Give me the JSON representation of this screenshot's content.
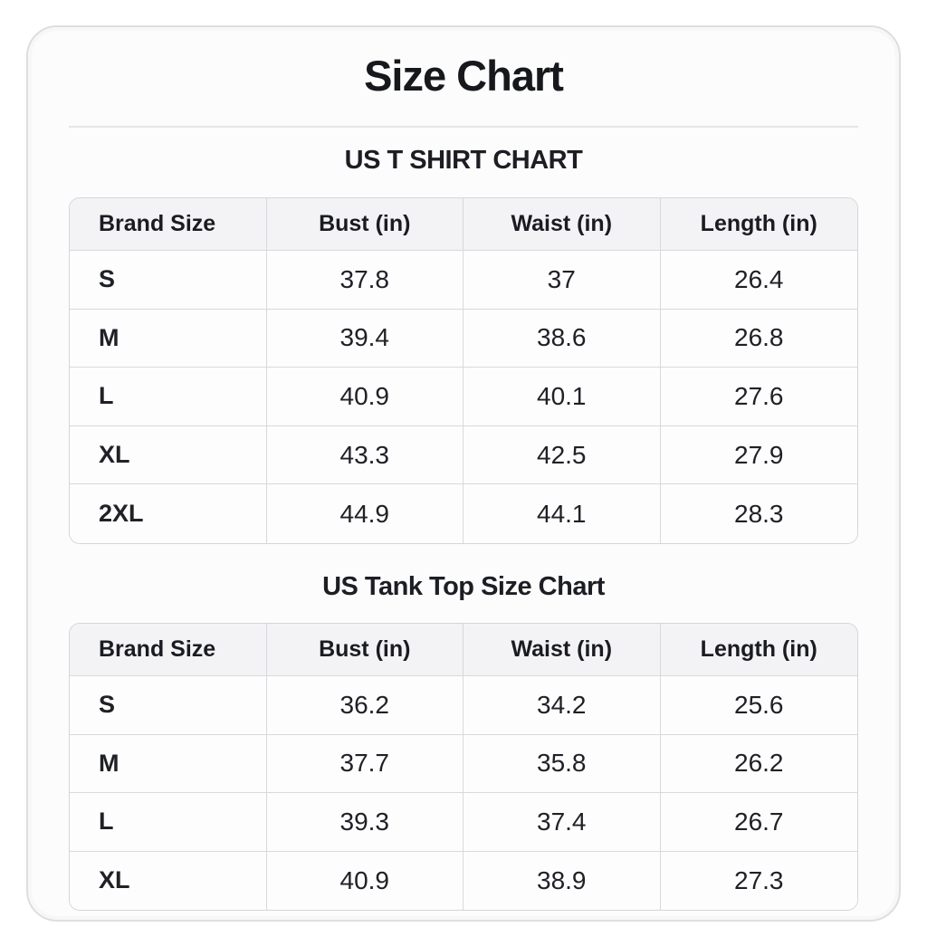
{
  "page": {
    "title": "Size Chart"
  },
  "colors": {
    "card_background": "#fcfcfd",
    "card_border": "#dededf",
    "table_border": "#d6d6da",
    "table_header_background": "#f3f3f5",
    "text": "#1b1c20"
  },
  "chart_data": [
    {
      "type": "table",
      "title": "US T SHIRT CHART",
      "columns": [
        "Brand Size",
        "Bust (in)",
        "Waist (in)",
        "Length (in)"
      ],
      "rows": [
        [
          "S",
          "37.8",
          "37",
          "26.4"
        ],
        [
          "M",
          "39.4",
          "38.6",
          "26.8"
        ],
        [
          "L",
          "40.9",
          "40.1",
          "27.6"
        ],
        [
          "XL",
          "43.3",
          "42.5",
          "27.9"
        ],
        [
          "2XL",
          "44.9",
          "44.1",
          "28.3"
        ]
      ]
    },
    {
      "type": "table",
      "title": "US Tank Top Size Chart",
      "columns": [
        "Brand Size",
        "Bust (in)",
        "Waist (in)",
        "Length (in)"
      ],
      "rows": [
        [
          "S",
          "36.2",
          "34.2",
          "25.6"
        ],
        [
          "M",
          "37.7",
          "35.8",
          "26.2"
        ],
        [
          "L",
          "39.3",
          "37.4",
          "26.7"
        ],
        [
          "XL",
          "40.9",
          "38.9",
          "27.3"
        ]
      ]
    }
  ]
}
